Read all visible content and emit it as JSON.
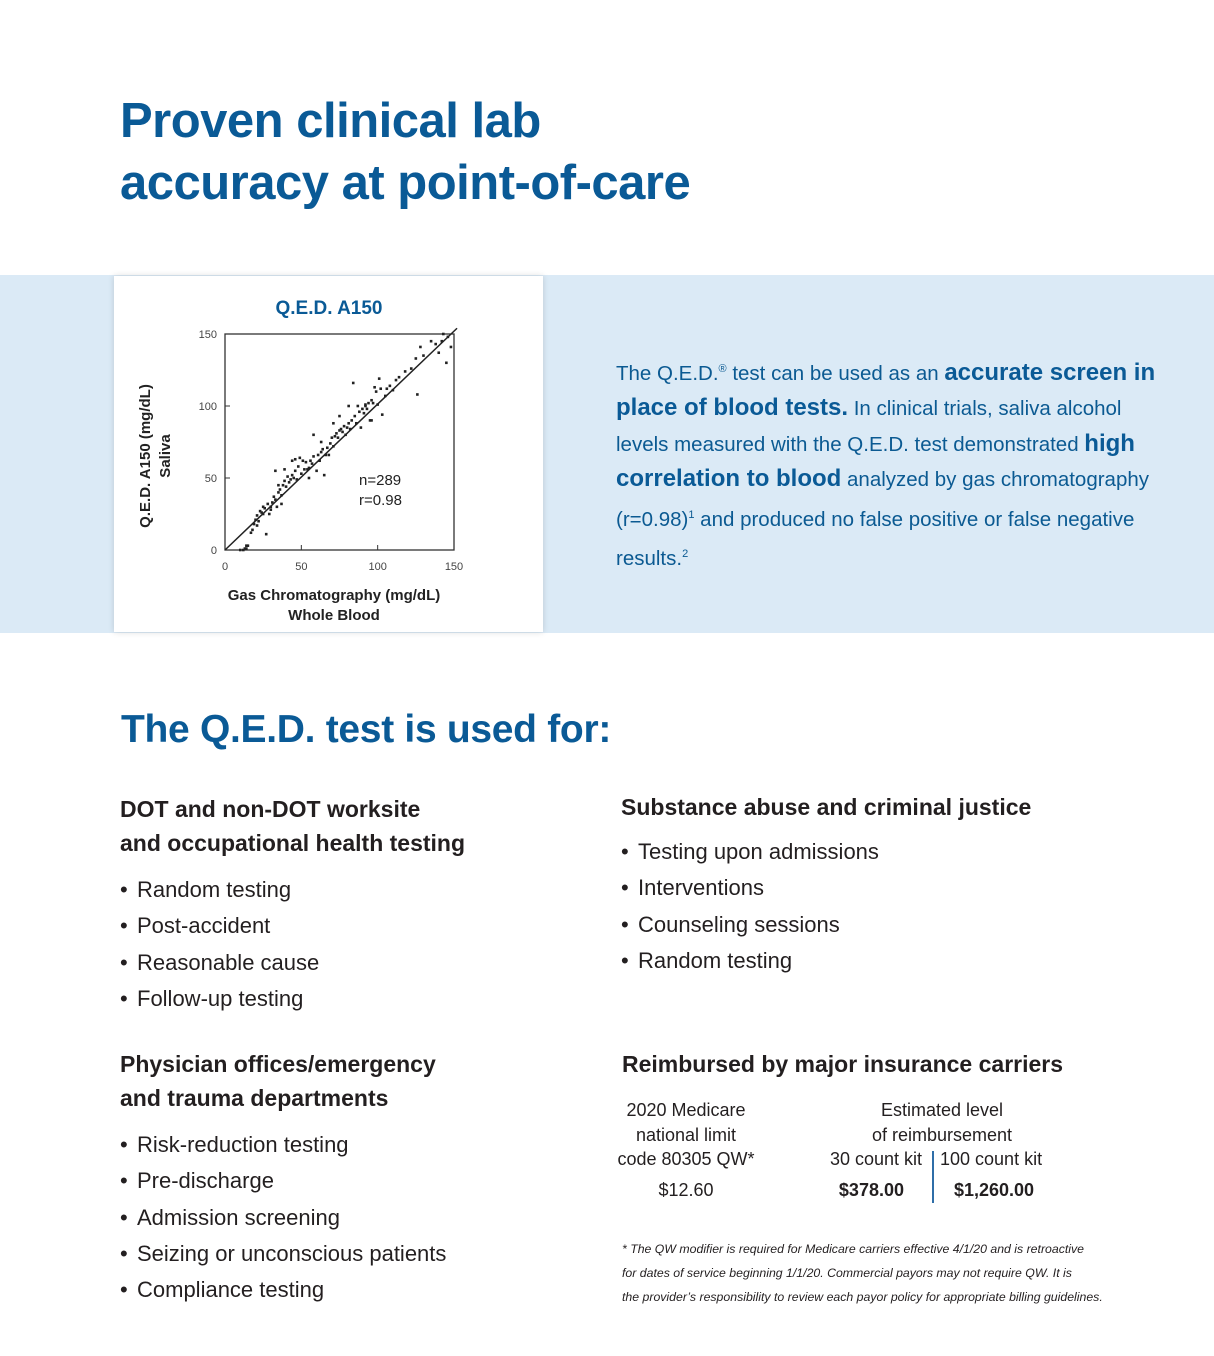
{
  "title_lines": [
    "Proven clinical lab",
    "accuracy at point-of-care"
  ],
  "chart_data": {
    "type": "scatter",
    "title": "Q.E.D. A150",
    "xlabel": "Gas Chromatography (mg/dL)",
    "xlabel2": "Whole Blood",
    "ylabel": "Q.E.D. A150 (mg/dL)",
    "ylabel2": "Saliva",
    "xlim": [
      0,
      150
    ],
    "ylim": [
      0,
      150
    ],
    "xticks": [
      "0",
      "50",
      "100",
      "150"
    ],
    "yticks": [
      "0",
      "50",
      "100",
      "150"
    ],
    "annotation_n": "n=289",
    "annotation_r": "r=0.98",
    "fit_line": [
      [
        0,
        0
      ],
      [
        152,
        154
      ]
    ],
    "points": [
      [
        10,
        0
      ],
      [
        12,
        0
      ],
      [
        13,
        1
      ],
      [
        14,
        3
      ],
      [
        15,
        3
      ],
      [
        14,
        1
      ],
      [
        17,
        12
      ],
      [
        18,
        14
      ],
      [
        19,
        18
      ],
      [
        20,
        21
      ],
      [
        21,
        24
      ],
      [
        22,
        20
      ],
      [
        23,
        27
      ],
      [
        24,
        26
      ],
      [
        25,
        30
      ],
      [
        26,
        29
      ],
      [
        27,
        11
      ],
      [
        28,
        32
      ],
      [
        29,
        25
      ],
      [
        30,
        30
      ],
      [
        30,
        28
      ],
      [
        31,
        33
      ],
      [
        32,
        37
      ],
      [
        33,
        35
      ],
      [
        34,
        30
      ],
      [
        35,
        40
      ],
      [
        35,
        45
      ],
      [
        36,
        42
      ],
      [
        37,
        38
      ],
      [
        38,
        45
      ],
      [
        39,
        48
      ],
      [
        40,
        44
      ],
      [
        41,
        51
      ],
      [
        42,
        47
      ],
      [
        43,
        49
      ],
      [
        44,
        52
      ],
      [
        45,
        50
      ],
      [
        46,
        55
      ],
      [
        47,
        49
      ],
      [
        48,
        58
      ],
      [
        50,
        53
      ],
      [
        51,
        62
      ],
      [
        52,
        56
      ],
      [
        53,
        61
      ],
      [
        54,
        56
      ],
      [
        55,
        57
      ],
      [
        56,
        62
      ],
      [
        57,
        60
      ],
      [
        58,
        65
      ],
      [
        60,
        55
      ],
      [
        61,
        66
      ],
      [
        62,
        62
      ],
      [
        63,
        68
      ],
      [
        64,
        70
      ],
      [
        65,
        52
      ],
      [
        66,
        66
      ],
      [
        67,
        71
      ],
      [
        68,
        66
      ],
      [
        69,
        74
      ],
      [
        70,
        78
      ],
      [
        71,
        72
      ],
      [
        72,
        79
      ],
      [
        73,
        81
      ],
      [
        74,
        78
      ],
      [
        75,
        83
      ],
      [
        76,
        84
      ],
      [
        77,
        82
      ],
      [
        78,
        86
      ],
      [
        79,
        80
      ],
      [
        80,
        85
      ],
      [
        81,
        88
      ],
      [
        82,
        84
      ],
      [
        83,
        90
      ],
      [
        85,
        93
      ],
      [
        86,
        88
      ],
      [
        87,
        100
      ],
      [
        88,
        96
      ],
      [
        89,
        85
      ],
      [
        90,
        98
      ],
      [
        91,
        95
      ],
      [
        92,
        100
      ],
      [
        93,
        98
      ],
      [
        94,
        102
      ],
      [
        95,
        90
      ],
      [
        96,
        104
      ],
      [
        97,
        102
      ],
      [
        98,
        113
      ],
      [
        99,
        110
      ],
      [
        100,
        101
      ],
      [
        101,
        119
      ],
      [
        102,
        112
      ],
      [
        103,
        94
      ],
      [
        105,
        107
      ],
      [
        106,
        112
      ],
      [
        108,
        114
      ],
      [
        110,
        111
      ],
      [
        112,
        118
      ],
      [
        114,
        120
      ],
      [
        118,
        124
      ],
      [
        122,
        126
      ],
      [
        125,
        133
      ],
      [
        126,
        108
      ],
      [
        128,
        141
      ],
      [
        130,
        135
      ],
      [
        135,
        145
      ],
      [
        138,
        143
      ],
      [
        140,
        137
      ],
      [
        142,
        145
      ],
      [
        143,
        150
      ],
      [
        145,
        130
      ],
      [
        146,
        148
      ],
      [
        148,
        141
      ],
      [
        44,
        62
      ],
      [
        46,
        63
      ],
      [
        39,
        56
      ],
      [
        58,
        80
      ],
      [
        71,
        88
      ],
      [
        75,
        93
      ],
      [
        33,
        55
      ],
      [
        49,
        64
      ],
      [
        25,
        25
      ],
      [
        21,
        17
      ],
      [
        37,
        32
      ],
      [
        55,
        50
      ],
      [
        63,
        75
      ],
      [
        81,
        100
      ],
      [
        92,
        101
      ],
      [
        84,
        116
      ],
      [
        96,
        90
      ]
    ]
  },
  "blurb": {
    "p1": "The Q.E.D.",
    "reg": "®",
    "p2": " test can be used as an ",
    "b1": "accurate screen in place of blood tests.",
    "p3": " In clinical trials, saliva alcohol levels measured with the Q.E.D. test demonstrated ",
    "b2": "high correlation to blood",
    "p4": " analyzed by gas chromatography (r=0.98)",
    "sup1": "1",
    "p5": " and produced no false positive or false negative results.",
    "sup2": "2"
  },
  "used_for_heading": "The Q.E.D. test is used for:",
  "sections": [
    {
      "heading_lines": [
        "DOT and non-DOT worksite",
        "and occupational health testing"
      ],
      "items": [
        "Random testing",
        "Post-accident",
        "Reasonable cause",
        "Follow-up testing"
      ]
    },
    {
      "heading_lines": [
        "Physician offices/emergency",
        "and trauma departments"
      ],
      "items": [
        "Risk-reduction testing",
        "Pre-discharge",
        "Admission screening",
        "Seizing or unconscious patients",
        "Compliance testing"
      ]
    },
    {
      "heading_lines": [
        "Substance abuse and criminal justice"
      ],
      "items": [
        "Testing upon admissions",
        "Interventions",
        "Counseling sessions",
        "Random testing"
      ]
    }
  ],
  "bullet": "•",
  "reimbursement": {
    "heading": "Reimbursed by major insurance carriers",
    "medicare_lines": [
      "2020 Medicare",
      "national limit",
      "code 80305 QW*"
    ],
    "medicare_value": "$12.60",
    "estimated_lines": [
      "Estimated level",
      "of reimbursement"
    ],
    "kit30_label": "30 count kit",
    "kit30_value": "$378.00",
    "kit100_label": "100 count kit",
    "kit100_value": "$1,260.00"
  },
  "footnote_lines": [
    "* The QW modifier is required for Medicare carriers effective 4/1/20 and is retroactive",
    "for dates of service beginning 1/1/20. Commercial payors may not require QW. It is",
    "the provider’s responsibility to review each payor policy for appropriate billing guidelines."
  ],
  "colors": {
    "brand_blue": "#0a5a96",
    "band": "#dbeaf6"
  }
}
